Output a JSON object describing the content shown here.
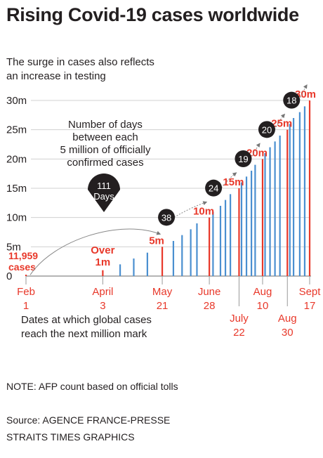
{
  "header": {
    "title": "Rising Covid-19 cases worldwide",
    "subtitle_line1": "The surge in cases also reflects",
    "subtitle_line2": "an increase in testing"
  },
  "footer": {
    "bottom_note_line1": "Dates at which global cases",
    "bottom_note_line2": "reach the next million mark",
    "note": "NOTE: AFP count based on official tolls",
    "source_line1": "Source: AGENCE FRANCE-PRESSE",
    "source_line2": "STRAITS TIMES GRAPHICS"
  },
  "colors": {
    "blue": "#4a8fd0",
    "red": "#e8382a",
    "dark": "#231f20",
    "grid": "#d0d0d0",
    "axis": "#888888"
  },
  "chart_data": {
    "type": "bar",
    "x_axis": {
      "range_days": [
        0,
        229
      ],
      "start_date": "Feb 1"
    },
    "y_axis": {
      "ylim": [
        0,
        31
      ],
      "ticks": [
        "0",
        "5m",
        "10m",
        "15m",
        "20m",
        "25m",
        "30m"
      ],
      "tick_values": [
        0,
        5,
        10,
        15,
        20,
        25,
        30
      ]
    },
    "date_labels": [
      {
        "day": 0,
        "month": "Feb",
        "date": "1"
      },
      {
        "day": 62,
        "month": "April",
        "date": "3"
      },
      {
        "day": 110,
        "month": "May",
        "date": "21"
      },
      {
        "day": 148,
        "month": "June",
        "date": "28"
      },
      {
        "day": 172,
        "month": "July",
        "date": "22"
      },
      {
        "day": 191,
        "month": "Aug",
        "date": "10"
      },
      {
        "day": 211,
        "month": "Aug",
        "date": "30"
      },
      {
        "day": 229,
        "month": "Sept",
        "date": "17"
      }
    ],
    "bars": [
      {
        "day": 0,
        "value": 0.012,
        "milestone": true
      },
      {
        "day": 62,
        "value": 1,
        "milestone": true
      },
      {
        "day": 76,
        "value": 2,
        "milestone": false
      },
      {
        "day": 87,
        "value": 3,
        "milestone": false
      },
      {
        "day": 98,
        "value": 4,
        "milestone": false
      },
      {
        "day": 110,
        "value": 5,
        "milestone": true
      },
      {
        "day": 119,
        "value": 6,
        "milestone": false
      },
      {
        "day": 126,
        "value": 7,
        "milestone": false
      },
      {
        "day": 133,
        "value": 8,
        "milestone": false
      },
      {
        "day": 138,
        "value": 9,
        "milestone": false
      },
      {
        "day": 148,
        "value": 10,
        "milestone": true
      },
      {
        "day": 151,
        "value": 11,
        "milestone": false
      },
      {
        "day": 157,
        "value": 12,
        "milestone": false
      },
      {
        "day": 161,
        "value": 13,
        "milestone": false
      },
      {
        "day": 165,
        "value": 14,
        "milestone": false
      },
      {
        "day": 172,
        "value": 15,
        "milestone": true
      },
      {
        "day": 174,
        "value": 16,
        "milestone": false
      },
      {
        "day": 178,
        "value": 17,
        "milestone": false
      },
      {
        "day": 182,
        "value": 18,
        "milestone": false
      },
      {
        "day": 185,
        "value": 19,
        "milestone": false
      },
      {
        "day": 191,
        "value": 20,
        "milestone": true
      },
      {
        "day": 193,
        "value": 21,
        "milestone": false
      },
      {
        "day": 197,
        "value": 22,
        "milestone": false
      },
      {
        "day": 201,
        "value": 23,
        "milestone": false
      },
      {
        "day": 205,
        "value": 24,
        "milestone": false
      },
      {
        "day": 211,
        "value": 25,
        "milestone": true
      },
      {
        "day": 213,
        "value": 26,
        "milestone": false
      },
      {
        "day": 216,
        "value": 27,
        "milestone": false
      },
      {
        "day": 221,
        "value": 28,
        "milestone": false
      },
      {
        "day": 225,
        "value": 29,
        "milestone": false
      },
      {
        "day": 229,
        "value": 30,
        "milestone": true
      }
    ],
    "milestone_labels": [
      {
        "day": 0,
        "value": 0,
        "line1": "11,959",
        "line2": "cases"
      },
      {
        "day": 62,
        "value": 1,
        "line1": "Over",
        "line2": "1m"
      },
      {
        "day": 110,
        "value": 5,
        "line1": "5m"
      },
      {
        "day": 148,
        "value": 10,
        "line1": "10m"
      },
      {
        "day": 172,
        "value": 15,
        "line1": "15m"
      },
      {
        "day": 191,
        "value": 20,
        "line1": "20m"
      },
      {
        "day": 211,
        "value": 25,
        "line1": "25m"
      },
      {
        "day": 229,
        "value": 30,
        "line1": "30m"
      }
    ],
    "intervals_title": [
      "Number of days",
      "between each",
      "5 million of officially",
      "confirmed cases"
    ],
    "intervals": [
      {
        "from_day": 0,
        "to_day": 110,
        "to_value": 5,
        "days": "111",
        "unit": "Days"
      },
      {
        "from_day": 110,
        "to_day": 148,
        "to_value": 10,
        "days": "38"
      },
      {
        "from_day": 148,
        "to_day": 172,
        "to_value": 15,
        "days": "24"
      },
      {
        "from_day": 172,
        "to_day": 191,
        "to_value": 20,
        "days": "19"
      },
      {
        "from_day": 191,
        "to_day": 211,
        "to_value": 25,
        "days": "20"
      },
      {
        "from_day": 211,
        "to_day": 229,
        "to_value": 30,
        "days": "18"
      }
    ]
  }
}
